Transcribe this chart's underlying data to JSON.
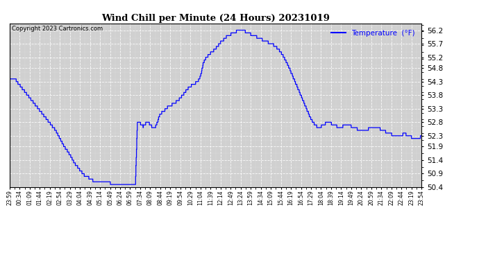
{
  "title": "Wind Chill per Minute (24 Hours) 20231019",
  "copyright": "Copyright 2023 Cartronics.com",
  "legend_label": "Temperature  (°F)",
  "ylim": [
    50.4,
    56.45
  ],
  "yticks": [
    50.4,
    50.9,
    51.4,
    51.9,
    52.3,
    52.8,
    53.3,
    53.8,
    54.3,
    54.8,
    55.2,
    55.7,
    56.2
  ],
  "line_color": "blue",
  "background_color": "#d0d0d0",
  "x_tick_labels": [
    "23:59",
    "00:34",
    "01:09",
    "01:44",
    "02:19",
    "02:54",
    "03:29",
    "04:04",
    "04:39",
    "05:14",
    "05:49",
    "06:24",
    "06:59",
    "07:34",
    "08:09",
    "08:44",
    "09:19",
    "09:54",
    "10:29",
    "11:04",
    "11:39",
    "12:14",
    "12:49",
    "13:24",
    "13:59",
    "14:34",
    "15:09",
    "15:44",
    "16:19",
    "16:54",
    "17:29",
    "18:04",
    "18:39",
    "19:14",
    "19:49",
    "20:24",
    "20:59",
    "21:34",
    "22:09",
    "22:44",
    "23:19",
    "23:54"
  ],
  "key_points": [
    [
      0,
      54.4
    ],
    [
      20,
      54.4
    ],
    [
      25,
      54.3
    ],
    [
      40,
      54.1
    ],
    [
      55,
      53.9
    ],
    [
      70,
      53.7
    ],
    [
      85,
      53.5
    ],
    [
      100,
      53.3
    ],
    [
      115,
      53.1
    ],
    [
      130,
      52.9
    ],
    [
      145,
      52.7
    ],
    [
      160,
      52.5
    ],
    [
      175,
      52.2
    ],
    [
      190,
      51.9
    ],
    [
      210,
      51.6
    ],
    [
      225,
      51.3
    ],
    [
      240,
      51.1
    ],
    [
      255,
      50.9
    ],
    [
      265,
      50.8
    ],
    [
      275,
      50.75
    ],
    [
      290,
      50.65
    ],
    [
      305,
      50.6
    ],
    [
      320,
      50.6
    ],
    [
      335,
      50.55
    ],
    [
      350,
      50.55
    ],
    [
      365,
      50.5
    ],
    [
      395,
      50.5
    ],
    [
      410,
      50.5
    ],
    [
      420,
      50.52
    ],
    [
      425,
      50.5
    ],
    [
      430,
      50.48
    ],
    [
      438,
      50.47
    ],
    [
      445,
      52.85
    ],
    [
      450,
      52.8
    ],
    [
      460,
      52.7
    ],
    [
      465,
      52.65
    ],
    [
      470,
      52.7
    ],
    [
      478,
      52.8
    ],
    [
      482,
      52.85
    ],
    [
      488,
      52.7
    ],
    [
      495,
      52.65
    ],
    [
      500,
      52.6
    ],
    [
      508,
      52.65
    ],
    [
      515,
      52.8
    ],
    [
      520,
      53.0
    ],
    [
      525,
      53.1
    ],
    [
      530,
      53.15
    ],
    [
      535,
      53.2
    ],
    [
      540,
      53.25
    ],
    [
      545,
      53.3
    ],
    [
      550,
      53.35
    ],
    [
      555,
      53.4
    ],
    [
      565,
      53.45
    ],
    [
      575,
      53.5
    ],
    [
      585,
      53.6
    ],
    [
      595,
      53.7
    ],
    [
      610,
      53.9
    ],
    [
      625,
      54.1
    ],
    [
      640,
      54.2
    ],
    [
      655,
      54.3
    ],
    [
      665,
      54.5
    ],
    [
      675,
      55.0
    ],
    [
      680,
      55.1
    ],
    [
      685,
      55.2
    ],
    [
      690,
      55.25
    ],
    [
      695,
      55.3
    ],
    [
      700,
      55.35
    ],
    [
      705,
      55.4
    ],
    [
      710,
      55.45
    ],
    [
      715,
      55.5
    ],
    [
      720,
      55.55
    ],
    [
      725,
      55.6
    ],
    [
      730,
      55.7
    ],
    [
      740,
      55.8
    ],
    [
      750,
      55.9
    ],
    [
      760,
      56.0
    ],
    [
      770,
      56.05
    ],
    [
      780,
      56.1
    ],
    [
      790,
      56.15
    ],
    [
      800,
      56.2
    ],
    [
      815,
      56.2
    ],
    [
      820,
      56.15
    ],
    [
      830,
      56.1
    ],
    [
      840,
      56.05
    ],
    [
      850,
      56.0
    ],
    [
      860,
      55.95
    ],
    [
      870,
      55.9
    ],
    [
      880,
      55.85
    ],
    [
      890,
      55.8
    ],
    [
      900,
      55.75
    ],
    [
      910,
      55.7
    ],
    [
      920,
      55.65
    ],
    [
      930,
      55.55
    ],
    [
      940,
      55.45
    ],
    [
      950,
      55.3
    ],
    [
      960,
      55.1
    ],
    [
      970,
      54.9
    ],
    [
      980,
      54.65
    ],
    [
      990,
      54.4
    ],
    [
      1000,
      54.15
    ],
    [
      1010,
      53.9
    ],
    [
      1020,
      53.65
    ],
    [
      1030,
      53.4
    ],
    [
      1040,
      53.15
    ],
    [
      1050,
      52.9
    ],
    [
      1060,
      52.75
    ],
    [
      1070,
      52.65
    ],
    [
      1080,
      52.6
    ],
    [
      1090,
      52.7
    ],
    [
      1100,
      52.75
    ],
    [
      1110,
      52.8
    ],
    [
      1120,
      52.75
    ],
    [
      1130,
      52.7
    ],
    [
      1140,
      52.65
    ],
    [
      1150,
      52.65
    ],
    [
      1160,
      52.65
    ],
    [
      1170,
      52.7
    ],
    [
      1180,
      52.7
    ],
    [
      1190,
      52.65
    ],
    [
      1200,
      52.6
    ],
    [
      1210,
      52.55
    ],
    [
      1220,
      52.5
    ],
    [
      1230,
      52.5
    ],
    [
      1240,
      52.5
    ],
    [
      1250,
      52.55
    ],
    [
      1260,
      52.6
    ],
    [
      1270,
      52.6
    ],
    [
      1280,
      52.6
    ],
    [
      1290,
      52.55
    ],
    [
      1300,
      52.5
    ],
    [
      1310,
      52.45
    ],
    [
      1320,
      52.4
    ],
    [
      1330,
      52.35
    ],
    [
      1340,
      52.3
    ],
    [
      1350,
      52.3
    ],
    [
      1360,
      52.3
    ],
    [
      1370,
      52.35
    ],
    [
      1380,
      52.35
    ],
    [
      1390,
      52.3
    ],
    [
      1400,
      52.25
    ],
    [
      1410,
      52.2
    ],
    [
      1420,
      52.2
    ],
    [
      1430,
      52.25
    ],
    [
      1435,
      52.3
    ]
  ]
}
